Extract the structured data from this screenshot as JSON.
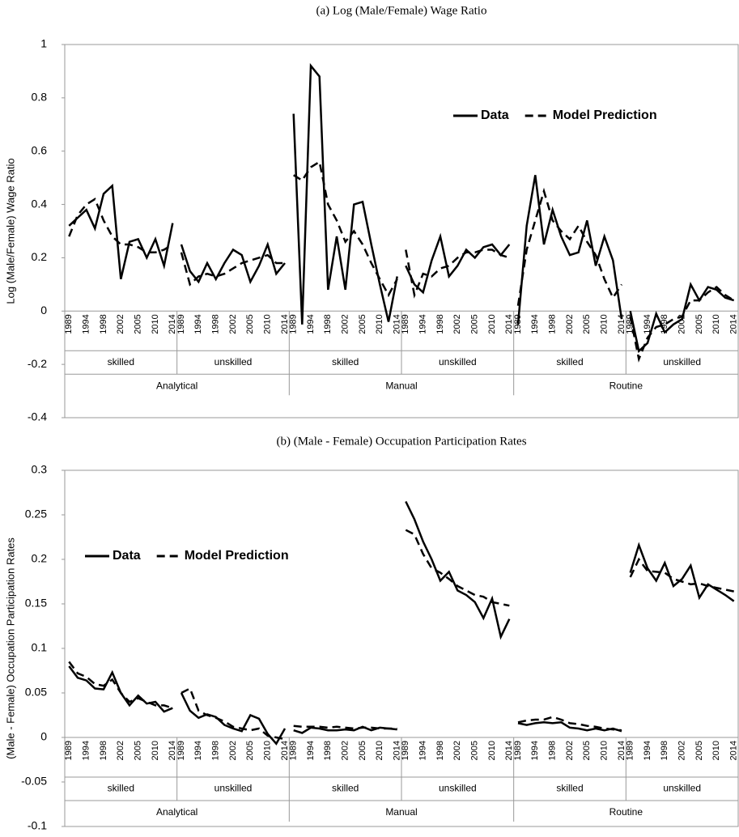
{
  "chart_data": [
    {
      "type": "line",
      "title": "(a) Log (Male/Female) Wage Ratio",
      "y_label": "Log (Male/Female) Wage Ratio",
      "categories": [
        "1989",
        null,
        "1994",
        null,
        "1998",
        null,
        "2002",
        null,
        "2005",
        null,
        "2010",
        null,
        "2014",
        "1989",
        null,
        "1994",
        null,
        "1998",
        null,
        "2002",
        null,
        "2005",
        null,
        "2010",
        null,
        "2014",
        "1989",
        null,
        "1994",
        null,
        "1998",
        null,
        "2002",
        null,
        "2005",
        null,
        "2010",
        null,
        "2014",
        "1989",
        null,
        "1994",
        null,
        "1998",
        null,
        "2002",
        null,
        "2005",
        null,
        "2010",
        null,
        "2014",
        "1989",
        null,
        "1994",
        null,
        "1998",
        null,
        "2002",
        null,
        "2005",
        null,
        "2010",
        null,
        "2014",
        "1989",
        null,
        "1994",
        null,
        "1998",
        null,
        "2002",
        null,
        "2005",
        null,
        "2010",
        null,
        "2014"
      ],
      "subgroups": [
        "skilled",
        "unskilled",
        "skilled",
        "unskilled",
        "skilled",
        "unskilled"
      ],
      "groups": [
        "Analytical",
        "Manual",
        "Routine"
      ],
      "series": [
        {
          "name": "Data",
          "color": "#000000",
          "style": "solid",
          "values": [
            0.32,
            0.35,
            0.38,
            0.31,
            0.44,
            0.47,
            0.12,
            0.26,
            0.27,
            0.2,
            0.27,
            0.17,
            0.33,
            0.25,
            0.15,
            0.11,
            0.18,
            0.12,
            0.18,
            0.23,
            0.21,
            0.11,
            0.17,
            0.25,
            0.14,
            0.18,
            0.74,
            -0.05,
            0.92,
            0.88,
            0.08,
            0.28,
            0.08,
            0.4,
            0.41,
            0.25,
            0.1,
            -0.04,
            0.13,
            0.17,
            0.1,
            0.07,
            0.19,
            0.28,
            0.13,
            0.17,
            0.23,
            0.2,
            0.24,
            0.25,
            0.21,
            0.25,
            -0.05,
            0.32,
            0.51,
            0.25,
            0.38,
            0.28,
            0.21,
            0.22,
            0.34,
            0.17,
            0.28,
            0.19,
            -0.03,
            0.0,
            -0.15,
            -0.12,
            -0.01,
            -0.08,
            -0.05,
            -0.03,
            0.1,
            0.04,
            0.09,
            0.08,
            0.05,
            0.04
          ]
        },
        {
          "name": "Model Prediction",
          "color": "#000000",
          "style": "dashed",
          "values": [
            0.28,
            0.36,
            0.4,
            0.42,
            0.34,
            0.28,
            0.25,
            0.25,
            0.24,
            0.22,
            0.22,
            0.23,
            0.25,
            0.22,
            0.1,
            0.13,
            0.14,
            0.13,
            0.14,
            0.16,
            0.18,
            0.19,
            0.2,
            0.21,
            0.18,
            0.18,
            0.51,
            0.49,
            0.54,
            0.56,
            0.4,
            0.34,
            0.26,
            0.3,
            0.25,
            0.18,
            0.12,
            0.06,
            0.12,
            0.23,
            0.06,
            0.14,
            0.13,
            0.16,
            0.17,
            0.2,
            0.22,
            0.22,
            0.23,
            0.23,
            0.21,
            0.2,
            0.02,
            0.23,
            0.34,
            0.45,
            0.34,
            0.3,
            0.27,
            0.32,
            0.26,
            0.21,
            0.12,
            0.05,
            0.1,
            -0.02,
            -0.18,
            -0.1,
            -0.06,
            -0.05,
            -0.03,
            -0.02,
            0.04,
            0.04,
            0.07,
            0.09,
            0.06,
            0.04
          ]
        }
      ],
      "ylim": [
        -0.4,
        1
      ],
      "yticks": [
        -0.4,
        -0.2,
        0,
        0.2,
        0.4,
        0.6,
        0.8,
        1
      ],
      "legend": "upper right"
    },
    {
      "type": "line",
      "title": "(b) (Male - Female) Occupation Participation Rates",
      "y_label": "(Male - Female) Occupation Participation Rates",
      "categories": [
        "1989",
        null,
        "1994",
        null,
        "1998",
        null,
        "2002",
        null,
        "2005",
        null,
        "2010",
        null,
        "2014",
        "1989",
        null,
        "1994",
        null,
        "1998",
        null,
        "2002",
        null,
        "2005",
        null,
        "2010",
        null,
        "2014",
        "1989",
        null,
        "1994",
        null,
        "1998",
        null,
        "2002",
        null,
        "2005",
        null,
        "2010",
        null,
        "2014",
        "1989",
        null,
        "1994",
        null,
        "1998",
        null,
        "2002",
        null,
        "2005",
        null,
        "2010",
        null,
        "2014",
        "1989",
        null,
        "1994",
        null,
        "1998",
        null,
        "2002",
        null,
        "2005",
        null,
        "2010",
        null,
        "2014",
        "1989",
        null,
        "1994",
        null,
        "1998",
        null,
        "2002",
        null,
        "2005",
        null,
        "2010",
        null,
        "2014"
      ],
      "subgroups": [
        "skilled",
        "unskilled",
        "skilled",
        "unskilled",
        "skilled",
        "unskilled"
      ],
      "groups": [
        "Analytical",
        "Manual",
        "Routine"
      ],
      "series": [
        {
          "name": "Data",
          "color": "#000000",
          "style": "solid",
          "values": [
            0.08,
            0.067,
            0.064,
            0.055,
            0.054,
            0.073,
            0.05,
            0.036,
            0.047,
            0.038,
            0.04,
            0.029,
            0.033,
            0.05,
            0.03,
            0.022,
            0.026,
            0.023,
            0.014,
            0.01,
            0.007,
            0.025,
            0.021,
            0.004,
            -0.007,
            0.01,
            0.008,
            0.005,
            0.011,
            0.01,
            0.008,
            0.008,
            0.009,
            0.008,
            0.012,
            0.008,
            0.011,
            0.01,
            0.009,
            0.265,
            0.245,
            0.22,
            0.2,
            0.176,
            0.186,
            0.165,
            0.16,
            0.152,
            0.134,
            0.156,
            0.113,
            0.133,
            0.016,
            0.014,
            0.016,
            0.017,
            0.016,
            0.017,
            0.011,
            0.01,
            0.008,
            0.01,
            0.008,
            0.01,
            0.007,
            0.185,
            0.216,
            0.19,
            0.176,
            0.196,
            0.17,
            0.178,
            0.193,
            0.157,
            0.172,
            0.166,
            0.16,
            0.153
          ]
        },
        {
          "name": "Model Prediction",
          "color": "#000000",
          "style": "dashed",
          "values": [
            0.085,
            0.072,
            0.068,
            0.06,
            0.058,
            0.065,
            0.05,
            0.04,
            0.044,
            0.04,
            0.036,
            0.036,
            0.033,
            0.05,
            0.055,
            0.03,
            0.025,
            0.022,
            0.018,
            0.012,
            0.01,
            0.008,
            0.01,
            0.002,
            0.0,
            -0.002,
            0.013,
            0.012,
            0.012,
            0.012,
            0.011,
            0.012,
            0.011,
            0.01,
            0.011,
            0.011,
            0.01,
            0.01,
            0.01,
            0.233,
            0.228,
            0.206,
            0.19,
            0.185,
            0.178,
            0.17,
            0.165,
            0.16,
            0.158,
            0.152,
            0.15,
            0.148,
            0.017,
            0.019,
            0.02,
            0.02,
            0.023,
            0.02,
            0.016,
            0.015,
            0.013,
            0.012,
            0.01,
            0.009,
            0.008,
            0.18,
            0.2,
            0.187,
            0.186,
            0.185,
            0.178,
            0.175,
            0.172,
            0.173,
            0.17,
            0.168,
            0.166,
            0.164
          ]
        }
      ],
      "ylim": [
        -0.1,
        0.3
      ],
      "yticks": [
        -0.1,
        -0.05,
        0,
        0.05,
        0.1,
        0.15,
        0.2,
        0.25,
        0.3
      ],
      "legend": "upper left"
    }
  ]
}
